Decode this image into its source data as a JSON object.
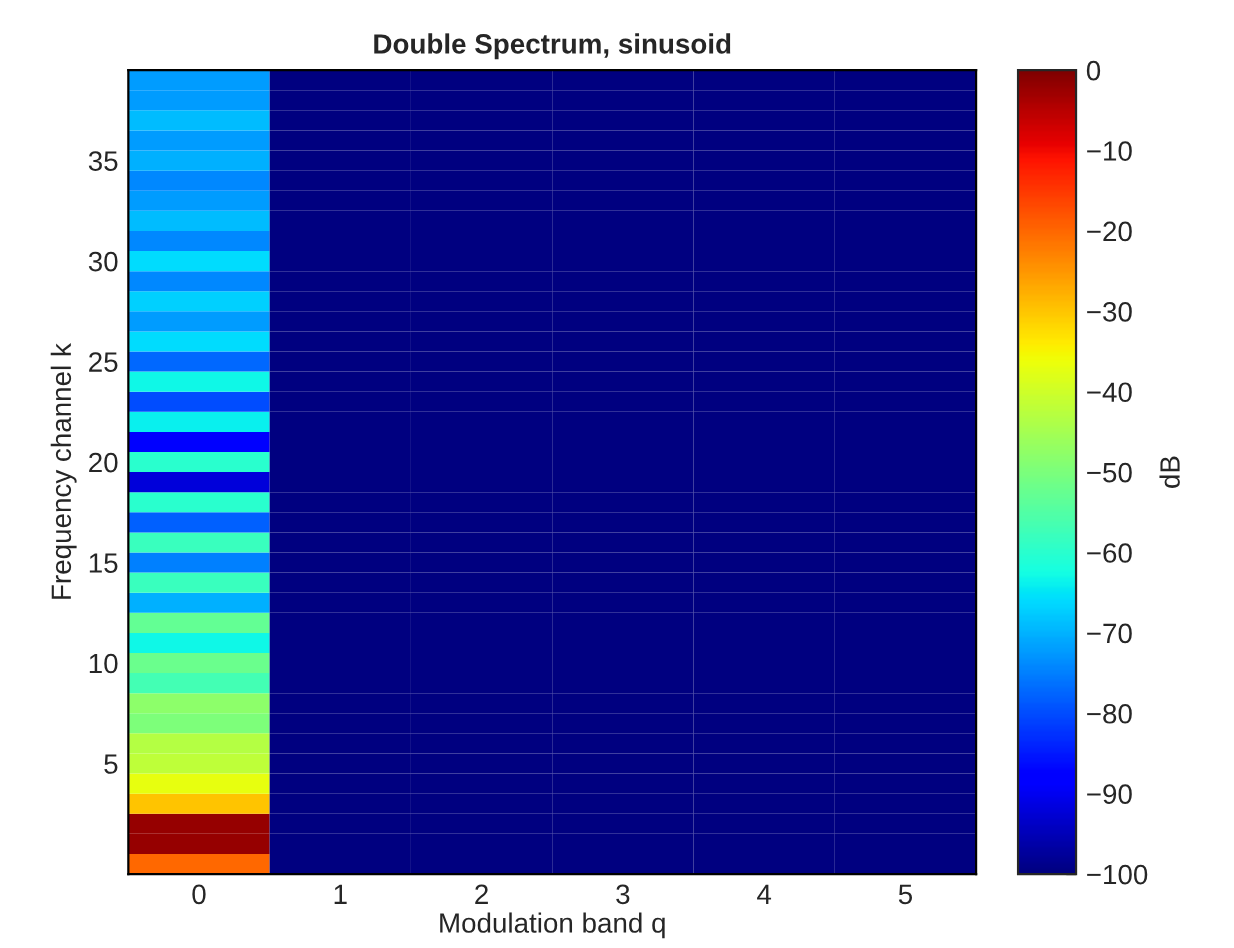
{
  "chart_data": {
    "type": "heatmap",
    "title": "Double Spectrum, sinusoid",
    "xlabel": "Modulation band q",
    "ylabel": "Frequency channel k",
    "clabel": "dB",
    "categories": [
      "0",
      "1",
      "2",
      "3",
      "4",
      "5"
    ],
    "y_categories": [
      null,
      null,
      null,
      null,
      "35",
      null,
      null,
      null,
      null,
      "30",
      null,
      null,
      null,
      null,
      "25",
      null,
      null,
      null,
      null,
      "20",
      null,
      null,
      null,
      null,
      "15",
      null,
      null,
      null,
      null,
      "10",
      null,
      null,
      null,
      null,
      "5",
      null,
      null,
      null,
      null,
      null
    ],
    "cells": [
      [
        -72,
        -100,
        -100,
        -100,
        -100,
        -100
      ],
      [
        -72,
        -100,
        -100,
        -100,
        -100,
        -100
      ],
      [
        -69,
        -100,
        -100,
        -100,
        -100,
        -100
      ],
      [
        -72,
        -100,
        -100,
        -100,
        -100,
        -100
      ],
      [
        -70,
        -100,
        -100,
        -100,
        -100,
        -100
      ],
      [
        -74,
        -100,
        -100,
        -100,
        -100,
        -100
      ],
      [
        -72,
        -100,
        -100,
        -100,
        -100,
        -100
      ],
      [
        -69,
        -100,
        -100,
        -100,
        -100,
        -100
      ],
      [
        -74,
        -100,
        -100,
        -100,
        -100,
        -100
      ],
      [
        -66,
        -100,
        -100,
        -100,
        -100,
        -100
      ],
      [
        -74,
        -100,
        -100,
        -100,
        -100,
        -100
      ],
      [
        -67,
        -100,
        -100,
        -100,
        -100,
        -100
      ],
      [
        -72,
        -100,
        -100,
        -100,
        -100,
        -100
      ],
      [
        -66,
        -100,
        -100,
        -100,
        -100,
        -100
      ],
      [
        -77,
        -100,
        -100,
        -100,
        -100,
        -100
      ],
      [
        -63,
        -100,
        -100,
        -100,
        -100,
        -100
      ],
      [
        -80,
        -100,
        -100,
        -100,
        -100,
        -100
      ],
      [
        -64,
        -100,
        -100,
        -100,
        -100,
        -100
      ],
      [
        -88,
        -100,
        -100,
        -100,
        -100,
        -100
      ],
      [
        -60,
        -100,
        -100,
        -100,
        -100,
        -100
      ],
      [
        -92,
        -100,
        -100,
        -100,
        -100,
        -100
      ],
      [
        -60,
        -100,
        -100,
        -100,
        -100,
        -100
      ],
      [
        -78,
        -100,
        -100,
        -100,
        -100,
        -100
      ],
      [
        -58,
        -100,
        -100,
        -100,
        -100,
        -100
      ],
      [
        -75,
        -100,
        -100,
        -100,
        -100,
        -100
      ],
      [
        -58,
        -100,
        -100,
        -100,
        -100,
        -100
      ],
      [
        -70,
        -100,
        -100,
        -100,
        -100,
        -100
      ],
      [
        -53,
        -100,
        -100,
        -100,
        -100,
        -100
      ],
      [
        -63,
        -100,
        -100,
        -100,
        -100,
        -100
      ],
      [
        -52,
        -100,
        -100,
        -100,
        -100,
        -100
      ],
      [
        -57,
        -100,
        -100,
        -100,
        -100,
        -100
      ],
      [
        -48,
        -100,
        -100,
        -100,
        -100,
        -100
      ],
      [
        -50,
        -100,
        -100,
        -100,
        -100,
        -100
      ],
      [
        -43,
        -100,
        -100,
        -100,
        -100,
        -100
      ],
      [
        -42,
        -100,
        -100,
        -100,
        -100,
        -100
      ],
      [
        -37,
        -100,
        -100,
        -100,
        -100,
        -100
      ],
      [
        -30,
        -100,
        -100,
        -100,
        -100,
        -100
      ],
      [
        -2,
        -100,
        -100,
        -100,
        -100,
        -100
      ],
      [
        -2,
        -100,
        -100,
        -100,
        -100,
        -100
      ],
      [
        -20,
        -100,
        -100,
        -100,
        -100,
        -100
      ]
    ],
    "clim": [
      -100,
      0
    ],
    "cticks": [
      0,
      {
        "value": -10,
        "label": "−10"
      },
      {
        "value": -20,
        "label": "−20"
      },
      {
        "value": -30,
        "label": "−30"
      },
      {
        "value": -40,
        "label": "−40"
      },
      {
        "value": -50,
        "label": "−50"
      },
      {
        "value": -60,
        "label": "−60"
      },
      {
        "value": -70,
        "label": "−70"
      },
      {
        "value": -80,
        "label": "−80"
      },
      {
        "value": -90,
        "label": "−90"
      },
      {
        "value": -100,
        "label": "−100"
      }
    ]
  }
}
